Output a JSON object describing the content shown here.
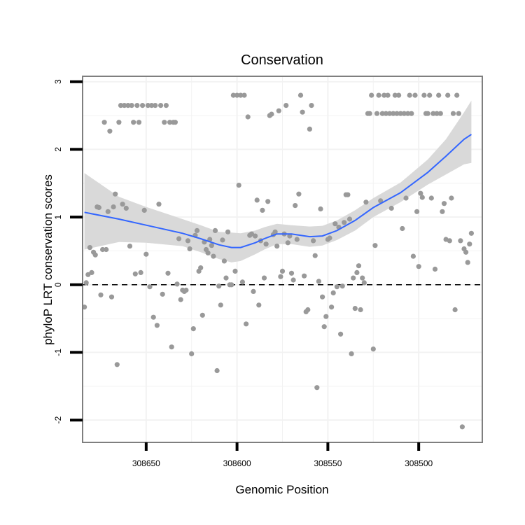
{
  "chart_data": {
    "type": "scatter",
    "title": "Conservation",
    "xlabel": "Genomic Position",
    "ylabel": "phyloP LRT conservation scores",
    "x_reversed": true,
    "xlim": [
      308685,
      308465
    ],
    "ylim": [
      -2.33,
      3.08
    ],
    "x_ticks": [
      308650,
      308600,
      308550,
      308500
    ],
    "x_tick_labels": [
      "308650",
      "308600",
      "308550",
      "308500"
    ],
    "y_ticks": [
      -2,
      -1,
      0,
      1,
      2,
      3
    ],
    "y_tick_labels": [
      "-2",
      "-1",
      "0",
      "1",
      "2",
      "3"
    ],
    "reference_line_y": 0,
    "grid": true,
    "colors": {
      "points": "#999999",
      "smooth_line": "#3366FF",
      "ribbon": "#D9D9D9",
      "panel_border": "#7F7F7F",
      "grid": "#F2F2F2",
      "reference_line": "#000000"
    },
    "points": [
      [
        308684,
        -0.33
      ],
      [
        308683,
        0.03
      ],
      [
        308682,
        0.15
      ],
      [
        308681,
        0.55
      ],
      [
        308680,
        0.18
      ],
      [
        308679,
        0.48
      ],
      [
        308678,
        0.44
      ],
      [
        308677,
        1.15
      ],
      [
        308676,
        1.14
      ],
      [
        308675,
        -0.15
      ],
      [
        308674,
        0.52
      ],
      [
        308673,
        2.4
      ],
      [
        308672,
        0.52
      ],
      [
        308671,
        1.08
      ],
      [
        308670,
        2.27
      ],
      [
        308669,
        -0.18
      ],
      [
        308668,
        1.15
      ],
      [
        308667,
        1.34
      ],
      [
        308666,
        -1.18
      ],
      [
        308665,
        2.4
      ],
      [
        308664,
        2.65
      ],
      [
        308663,
        1.19
      ],
      [
        308662,
        2.65
      ],
      [
        308661,
        1.13
      ],
      [
        308660,
        2.65
      ],
      [
        308659,
        0.57
      ],
      [
        308658,
        2.65
      ],
      [
        308657,
        2.4
      ],
      [
        308656,
        0.16
      ],
      [
        308655,
        2.65
      ],
      [
        308654,
        2.4
      ],
      [
        308653,
        0.18
      ],
      [
        308652,
        2.65
      ],
      [
        308651,
        1.1
      ],
      [
        308650,
        0.45
      ],
      [
        308649,
        2.65
      ],
      [
        308648,
        -0.03
      ],
      [
        308647,
        2.65
      ],
      [
        308646,
        -0.48
      ],
      [
        308645,
        2.65
      ],
      [
        308644,
        -0.6
      ],
      [
        308643,
        1.19
      ],
      [
        308642,
        2.65
      ],
      [
        308641,
        -0.14
      ],
      [
        308640,
        2.4
      ],
      [
        308639,
        2.65
      ],
      [
        308638,
        0.17
      ],
      [
        308637,
        2.4
      ],
      [
        308636,
        -0.92
      ],
      [
        308635,
        2.4
      ],
      [
        308634,
        2.4
      ],
      [
        308633,
        0.01
      ],
      [
        308632,
        0.68
      ],
      [
        308631,
        -0.22
      ],
      [
        308630,
        -0.08
      ],
      [
        308629,
        -0.1
      ],
      [
        308628,
        -0.08
      ],
      [
        308627,
        0.65
      ],
      [
        308626,
        0.53
      ],
      [
        308625,
        -1.02
      ],
      [
        308624,
        -0.65
      ],
      [
        308623,
        0.73
      ],
      [
        308622,
        0.8
      ],
      [
        308621,
        0.2
      ],
      [
        308620,
        0.25
      ],
      [
        308619,
        -0.45
      ],
      [
        308618,
        0.63
      ],
      [
        308617,
        0.52
      ],
      [
        308616,
        0.47
      ],
      [
        308615,
        0.67
      ],
      [
        308614,
        0.58
      ],
      [
        308613,
        0.42
      ],
      [
        308612,
        0.8
      ],
      [
        308611,
        -1.27
      ],
      [
        308610,
        -0.02
      ],
      [
        308609,
        -0.3
      ],
      [
        308608,
        0.66
      ],
      [
        308607,
        0.35
      ],
      [
        308606,
        0.1
      ],
      [
        308605,
        0.78
      ],
      [
        308604,
        0.0
      ],
      [
        308603,
        0.0
      ],
      [
        308602,
        2.8
      ],
      [
        308601,
        0.2
      ],
      [
        308600,
        2.8
      ],
      [
        308599,
        1.47
      ],
      [
        308598,
        2.8
      ],
      [
        308597,
        0.04
      ],
      [
        308596,
        2.8
      ],
      [
        308595,
        -0.58
      ],
      [
        308594,
        2.48
      ],
      [
        308593,
        0.73
      ],
      [
        308592,
        0.75
      ],
      [
        308591,
        -0.1
      ],
      [
        308590,
        0.72
      ],
      [
        308589,
        1.25
      ],
      [
        308588,
        -0.3
      ],
      [
        308587,
        0.65
      ],
      [
        308586,
        1.1
      ],
      [
        308585,
        0.1
      ],
      [
        308584,
        0.6
      ],
      [
        308583,
        1.23
      ],
      [
        308582,
        2.5
      ],
      [
        308581,
        2.52
      ],
      [
        308580,
        0.74
      ],
      [
        308579,
        0.78
      ],
      [
        308578,
        0.57
      ],
      [
        308577,
        2.57
      ],
      [
        308576,
        0.12
      ],
      [
        308575,
        0.2
      ],
      [
        308574,
        0.75
      ],
      [
        308573,
        2.65
      ],
      [
        308572,
        0.62
      ],
      [
        308571,
        0.72
      ],
      [
        308570,
        0.17
      ],
      [
        308569,
        0.07
      ],
      [
        308568,
        1.17
      ],
      [
        308567,
        0.67
      ],
      [
        308566,
        1.34
      ],
      [
        308565,
        2.8
      ],
      [
        308564,
        2.55
      ],
      [
        308563,
        0.13
      ],
      [
        308562,
        -0.4
      ],
      [
        308561,
        -0.37
      ],
      [
        308560,
        2.3
      ],
      [
        308559,
        2.65
      ],
      [
        308558,
        0.65
      ],
      [
        308557,
        0.43
      ],
      [
        308556,
        -1.52
      ],
      [
        308555,
        0.05
      ],
      [
        308554,
        1.12
      ],
      [
        308553,
        -0.18
      ],
      [
        308552,
        -0.62
      ],
      [
        308551,
        -0.47
      ],
      [
        308550,
        0.67
      ],
      [
        308549,
        0.69
      ],
      [
        308548,
        -0.33
      ],
      [
        308547,
        -0.12
      ],
      [
        308546,
        0.9
      ],
      [
        308545,
        -0.03
      ],
      [
        308544,
        0.85
      ],
      [
        308543,
        -0.73
      ],
      [
        308542,
        -0.02
      ],
      [
        308541,
        0.92
      ],
      [
        308540,
        1.33
      ],
      [
        308539,
        1.33
      ],
      [
        308538,
        0.97
      ],
      [
        308537,
        -1.02
      ],
      [
        308536,
        0.1
      ],
      [
        308535,
        -0.35
      ],
      [
        308534,
        0.18
      ],
      [
        308533,
        0.28
      ],
      [
        308532,
        -0.37
      ],
      [
        308531,
        0.1
      ],
      [
        308530,
        0.03
      ],
      [
        308529,
        1.22
      ],
      [
        308528,
        2.53
      ],
      [
        308527,
        2.53
      ],
      [
        308526,
        2.8
      ],
      [
        308525,
        -0.95
      ],
      [
        308524,
        0.58
      ],
      [
        308523,
        2.53
      ],
      [
        308522,
        2.8
      ],
      [
        308521,
        1.24
      ],
      [
        308520,
        2.53
      ],
      [
        308519,
        2.8
      ],
      [
        308518,
        2.53
      ],
      [
        308517,
        2.8
      ],
      [
        308516,
        2.53
      ],
      [
        308515,
        1.13
      ],
      [
        308514,
        2.53
      ],
      [
        308513,
        2.8
      ],
      [
        308512,
        2.53
      ],
      [
        308511,
        2.8
      ],
      [
        308510,
        2.53
      ],
      [
        308509,
        0.83
      ],
      [
        308508,
        2.53
      ],
      [
        308507,
        1.28
      ],
      [
        308506,
        2.53
      ],
      [
        308505,
        2.8
      ],
      [
        308504,
        2.53
      ],
      [
        308503,
        0.42
      ],
      [
        308502,
        2.8
      ],
      [
        308501,
        1.08
      ],
      [
        308500,
        0.27
      ],
      [
        308499,
        1.35
      ],
      [
        308498,
        1.29
      ],
      [
        308497,
        2.8
      ],
      [
        308496,
        2.53
      ],
      [
        308495,
        2.53
      ],
      [
        308494,
        2.8
      ],
      [
        308493,
        1.28
      ],
      [
        308492,
        2.53
      ],
      [
        308491,
        0.23
      ],
      [
        308490,
        2.53
      ],
      [
        308489,
        2.8
      ],
      [
        308488,
        2.53
      ],
      [
        308487,
        1.08
      ],
      [
        308486,
        1.2
      ],
      [
        308485,
        0.67
      ],
      [
        308484,
        2.8
      ],
      [
        308483,
        0.65
      ],
      [
        308482,
        1.28
      ],
      [
        308481,
        2.53
      ],
      [
        308480,
        -0.37
      ],
      [
        308479,
        2.8
      ],
      [
        308478,
        2.53
      ],
      [
        308477,
        0.65
      ],
      [
        308476,
        -2.1
      ],
      [
        308475,
        0.53
      ],
      [
        308474,
        0.48
      ],
      [
        308473,
        0.33
      ],
      [
        308472,
        0.6
      ],
      [
        308471,
        0.76
      ]
    ],
    "smooth_fit": [
      [
        308684,
        1.07
      ],
      [
        308665,
        0.97
      ],
      [
        308650,
        0.88
      ],
      [
        308630,
        0.76
      ],
      [
        308620,
        0.68
      ],
      [
        308610,
        0.59
      ],
      [
        308603,
        0.55
      ],
      [
        308598,
        0.55
      ],
      [
        308590,
        0.62
      ],
      [
        308585,
        0.68
      ],
      [
        308578,
        0.75
      ],
      [
        308570,
        0.75
      ],
      [
        308560,
        0.71
      ],
      [
        308553,
        0.72
      ],
      [
        308545,
        0.8
      ],
      [
        308535,
        0.95
      ],
      [
        308525,
        1.14
      ],
      [
        308510,
        1.36
      ],
      [
        308495,
        1.66
      ],
      [
        308485,
        1.9
      ],
      [
        308475,
        2.15
      ],
      [
        308471,
        2.22
      ]
    ],
    "smooth_band": [
      [
        308684,
        0.52,
        1.65
      ],
      [
        308665,
        0.63,
        1.3
      ],
      [
        308650,
        0.62,
        1.15
      ],
      [
        308630,
        0.57,
        0.97
      ],
      [
        308620,
        0.48,
        0.88
      ],
      [
        308610,
        0.38,
        0.78
      ],
      [
        308603,
        0.33,
        0.77
      ],
      [
        308598,
        0.35,
        0.76
      ],
      [
        308590,
        0.45,
        0.8
      ],
      [
        308585,
        0.52,
        0.85
      ],
      [
        308578,
        0.6,
        0.9
      ],
      [
        308570,
        0.6,
        0.88
      ],
      [
        308560,
        0.56,
        0.86
      ],
      [
        308553,
        0.58,
        0.87
      ],
      [
        308545,
        0.66,
        0.95
      ],
      [
        308535,
        0.8,
        1.1
      ],
      [
        308525,
        1.0,
        1.28
      ],
      [
        308510,
        1.22,
        1.51
      ],
      [
        308495,
        1.48,
        1.85
      ],
      [
        308485,
        1.63,
        2.15
      ],
      [
        308475,
        1.78,
        2.55
      ],
      [
        308471,
        1.8,
        2.72
      ]
    ]
  }
}
